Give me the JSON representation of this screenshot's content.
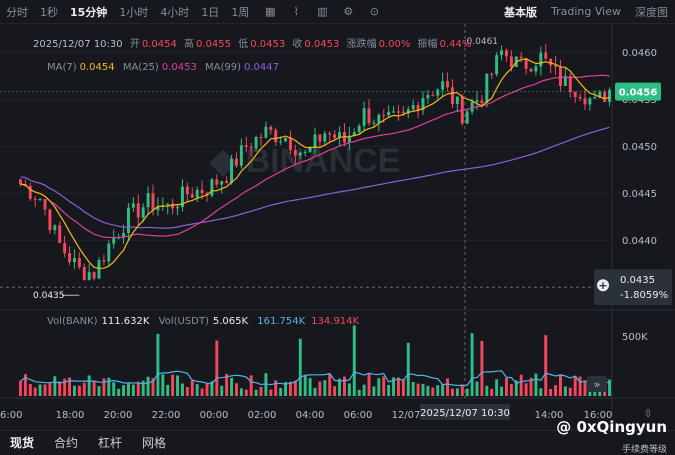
{
  "toolbar": {
    "timeframes": [
      "分时",
      "1秒",
      "15分钟",
      "1小时",
      "4小时",
      "1日",
      "1周"
    ],
    "active_timeframe": "15分钟",
    "views": [
      "基本版",
      "Trading View",
      "深度图"
    ],
    "active_view": "基本版"
  },
  "ohlc": {
    "date": "2025/12/07 10:30",
    "open_label": "开",
    "open": "0.0454",
    "high_label": "高",
    "high": "0.0455",
    "low_label": "低",
    "low": "0.0453",
    "close_label": "收",
    "close": "0.0453",
    "change_label": "涨跌幅",
    "change": "0.00%",
    "amp_label": "振幅",
    "amp": "0.44%"
  },
  "ma": {
    "ma7_label": "MA(7)",
    "ma7": "0.0454",
    "ma25_label": "MA(25)",
    "ma25": "0.0453",
    "ma99_label": "MA(99)",
    "ma99": "0.0447"
  },
  "volume_legend": {
    "label": "Vol(BANK)",
    "value": "111.632K",
    "usdt_label": "Vol(USDT)",
    "usdt_value": "5.065K",
    "v1": "161.754K",
    "v2": "134.914K"
  },
  "price_tag": "0.0456",
  "crosshair": {
    "price": "0.0435",
    "change": "-1.8059%",
    "time": "2025/12/07 10:30"
  },
  "markers": {
    "low": "0.0435",
    "high": "0.0461"
  },
  "watermark": {
    "text": "@ 0xQingyun",
    "sub": "手续费等级"
  },
  "bottom_tabs": [
    "现货",
    "合约",
    "杠杆",
    "网格"
  ],
  "colors": {
    "up": "#2ebd85",
    "down": "#f6465d",
    "ma7": "#f0b90b",
    "ma25": "#e03e99",
    "ma99": "#8e5fd6",
    "vol_ma": "#4fb3e8",
    "bg": "#16181d"
  },
  "chart_data": {
    "type": "candlestick",
    "interval": "15m",
    "ylim": [
      0.0433,
      0.0463
    ],
    "y_ticks": [
      "0.0460",
      "0.0455",
      "0.0450",
      "0.0445",
      "0.0440"
    ],
    "x_ticks": [
      "6:00",
      "18:00",
      "20:00",
      "22:00",
      "00:00",
      "02:00",
      "04:00",
      "06:00",
      "12/07",
      "14:00",
      "16:00"
    ],
    "volume_ticks": [
      "500K"
    ],
    "anchors": [
      [
        0,
        0.0446
      ],
      [
        4,
        0.04445
      ],
      [
        8,
        0.04395
      ],
      [
        12,
        0.04368
      ],
      [
        15,
        0.04365
      ],
      [
        18,
        0.04395
      ],
      [
        22,
        0.04425
      ],
      [
        26,
        0.0444
      ],
      [
        30,
        0.04435
      ],
      [
        34,
        0.0445
      ],
      [
        38,
        0.04455
      ],
      [
        42,
        0.0447
      ],
      [
        46,
        0.045
      ],
      [
        50,
        0.04515
      ],
      [
        54,
        0.0451
      ],
      [
        58,
        0.0449
      ],
      [
        62,
        0.04515
      ],
      [
        66,
        0.04505
      ],
      [
        70,
        0.04535
      ],
      [
        74,
        0.04525
      ],
      [
        78,
        0.0453
      ],
      [
        82,
        0.04555
      ],
      [
        86,
        0.04565
      ],
      [
        90,
        0.04535
      ],
      [
        94,
        0.04555
      ],
      [
        98,
        0.046
      ],
      [
        102,
        0.04585
      ],
      [
        106,
        0.04595
      ],
      [
        110,
        0.0457
      ],
      [
        114,
        0.0456
      ],
      [
        117,
        0.04545
      ],
      [
        120,
        0.0456
      ]
    ]
  }
}
